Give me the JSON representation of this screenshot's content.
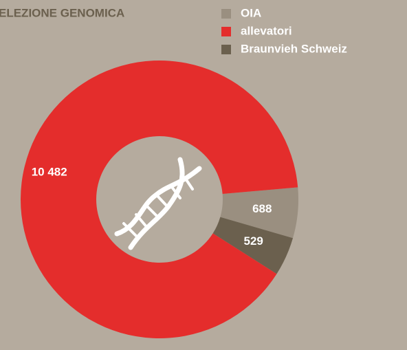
{
  "chart_data": {
    "type": "donut",
    "title": "ELEZIONE GENOMICA",
    "categories": [
      "OIA",
      "allevatori",
      "Braunvieh Schweiz"
    ],
    "values": [
      688,
      10482,
      529
    ],
    "value_labels": [
      "688",
      "10 482",
      "529"
    ],
    "colors": [
      "#9a8f80",
      "#e42d2c",
      "#6b604e"
    ]
  }
}
